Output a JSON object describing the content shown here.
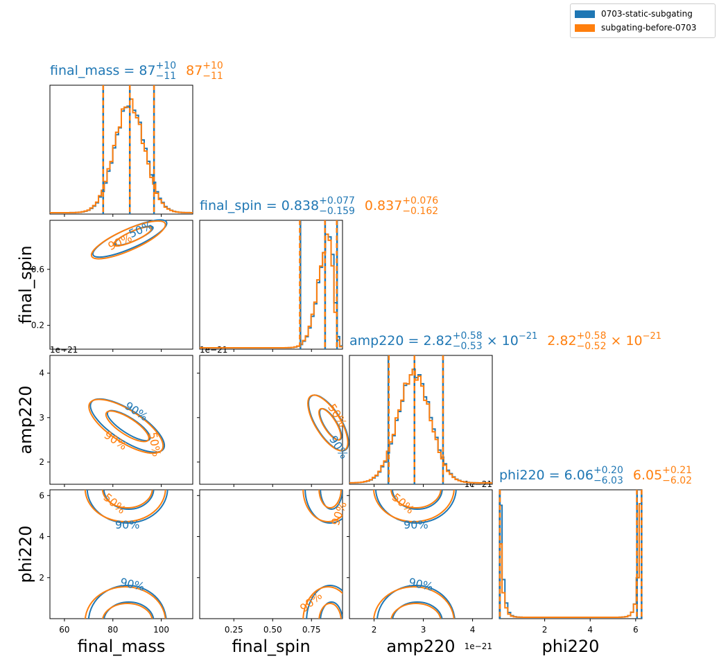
{
  "legend": {
    "items": [
      {
        "label": "0703-static-subgating",
        "color": "#1f77b4"
      },
      {
        "label": "subgating-before-0703",
        "color": "#ff7f0e"
      }
    ]
  },
  "chart_data": {
    "type": "corner",
    "parameters": [
      "final_mass",
      "final_spin",
      "amp220",
      "phi220"
    ],
    "axis_ranges": {
      "final_mass": [
        54,
        113
      ],
      "final_spin": [
        0.03,
        0.95
      ],
      "amp220": [
        1.5e-21,
        4.4e-21
      ],
      "phi220": [
        0,
        6.28
      ]
    },
    "ticks": {
      "final_mass": {
        "values": [
          60,
          80,
          100
        ],
        "labels": [
          "60",
          "80",
          "100"
        ]
      },
      "final_spin_x": {
        "values": [
          0.25,
          0.5,
          0.75
        ],
        "labels": [
          "0.25",
          "0.50",
          "0.75"
        ]
      },
      "final_spin_y": {
        "values": [
          0.2,
          0.6
        ],
        "labels": [
          "0.2",
          "0.6"
        ]
      },
      "amp220_x": {
        "values": [
          2e-21,
          3e-21,
          4e-21
        ],
        "labels": [
          "2",
          "3",
          "4"
        ]
      },
      "amp220_y": {
        "values": [
          2e-21,
          3e-21,
          4e-21
        ],
        "labels": [
          "2",
          "3",
          "4"
        ]
      },
      "phi220_x": {
        "values": [
          2,
          4,
          6
        ],
        "labels": [
          "2",
          "4",
          "6"
        ]
      },
      "phi220_y": {
        "values": [
          2,
          4,
          6
        ],
        "labels": [
          "2",
          "4",
          "6"
        ]
      }
    },
    "offset_text": "1e−21",
    "xlabels": [
      "final_mass",
      "final_spin",
      "amp220",
      "phi220"
    ],
    "ylabels": [
      "final_spin",
      "amp220",
      "phi220"
    ],
    "contour_labels": {
      "c50": "50%",
      "c90": "90%"
    },
    "series": [
      {
        "name": "0703-static-subgating",
        "color": "#1f77b4",
        "titles": [
          {
            "param": "final_mass",
            "median": "87",
            "plus": "+10",
            "minus": "−11",
            "scale": ""
          },
          {
            "param": "final_spin",
            "median": "0.838",
            "plus": "+0.077",
            "minus": "−0.159",
            "scale": ""
          },
          {
            "param": "amp220",
            "median": "2.82",
            "plus": "+0.58",
            "minus": "−0.53",
            "scale": "× 10",
            "scale_exp": "−21"
          },
          {
            "param": "phi220",
            "median": "6.06",
            "plus": "+0.20",
            "minus": "−6.03",
            "scale": ""
          }
        ],
        "quantiles": {
          "final_mass": [
            76,
            87,
            97
          ],
          "final_spin": [
            0.679,
            0.838,
            0.915
          ],
          "amp220": [
            2.29e-21,
            2.82e-21,
            3.4e-21
          ],
          "phi220": [
            0.03,
            6.06,
            6.26
          ]
        }
      },
      {
        "name": "subgating-before-0703",
        "color": "#ff7f0e",
        "titles": [
          {
            "param": "final_mass",
            "median": "87",
            "plus": "+10",
            "minus": "−11",
            "scale": ""
          },
          {
            "param": "final_spin",
            "median": "0.837",
            "plus": "+0.076",
            "minus": "−0.162",
            "scale": ""
          },
          {
            "param": "amp220",
            "median": "2.82",
            "plus": "+0.58",
            "minus": "−0.52",
            "scale": "× 10",
            "scale_exp": "−21"
          },
          {
            "param": "phi220",
            "median": "6.05",
            "plus": "+0.21",
            "minus": "−6.02",
            "scale": ""
          }
        ],
        "quantiles": {
          "final_mass": [
            76,
            87,
            97
          ],
          "final_spin": [
            0.675,
            0.837,
            0.913
          ],
          "amp220": [
            2.3e-21,
            2.82e-21,
            3.4e-21
          ],
          "phi220": [
            0.03,
            6.05,
            6.26
          ]
        }
      }
    ],
    "distributions": {
      "final_mass": {
        "mean": 87,
        "sd": 6.2
      },
      "final_spin": {
        "mean": 0.87,
        "sd": 0.07,
        "skew": "left"
      },
      "amp220": {
        "mean": 2.82e-21,
        "sd": 3.3e-22
      },
      "phi220": {
        "modes": [
          0.05,
          6.2
        ],
        "note": "bimodal at edges"
      }
    }
  }
}
